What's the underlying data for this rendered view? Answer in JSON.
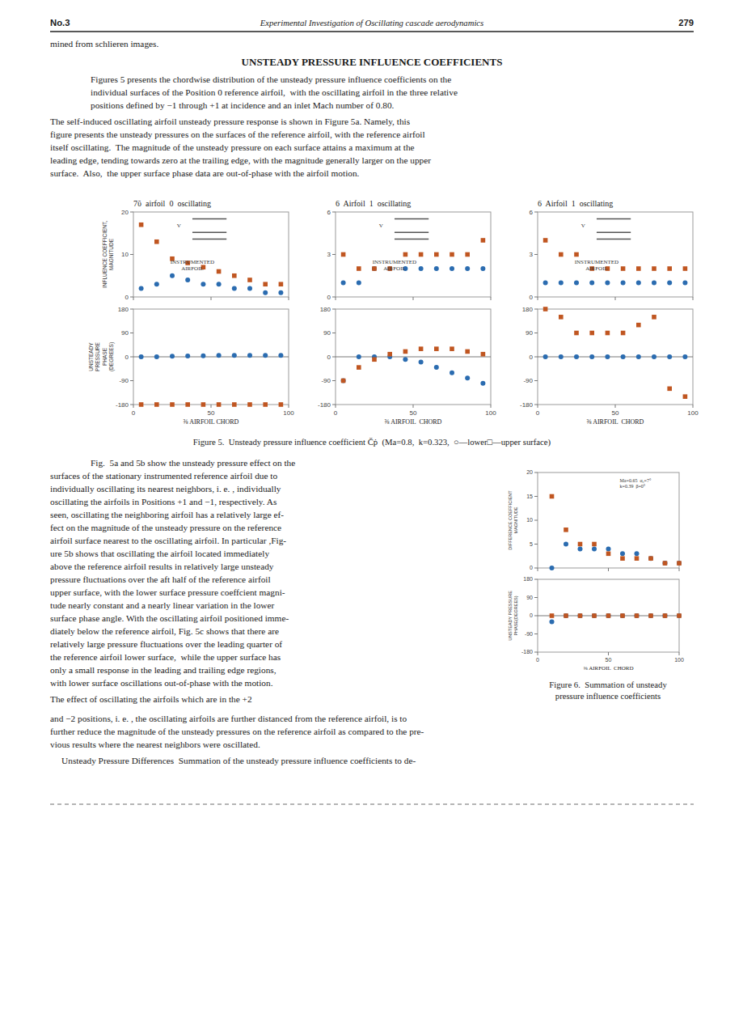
{
  "page": {
    "header_left": "No.3",
    "header_center": "Experimental Investigation of Oscillating cascade aerodynamics",
    "header_right": "279",
    "intro": "mined from schlieren images.",
    "section_title": "UNSTEADY PRESSURE INFLUENCE COEFFICIENTS",
    "para1": [
      "Figures 5 presents the chordwise distribution of the unsteady pressure influence coefficients on the",
      "individual surfaces of the Position 0 reference airfoil,  with the oscillating airfoil in the three relative",
      "positions defined by −1 through +1 at incidence and an inlet Mach number of 0.80."
    ],
    "para2": [
      "The self-induced oscillating airfoil unsteady pressure response is shown in Figure 5a. Namely, this",
      "figure presents the unsteady pressures on the surfaces of the reference airfoil, with the reference airfoil",
      "itself oscillating.  The magnitude of the unsteady pressure on each surface attains a maximum at the",
      "leading edge, tending towards zero at the trailing edge, with the magnitude generally larger on the upper",
      "surface.  Also,  the upper surface phase data are out-of-phase with the airfoil motion."
    ],
    "figure5_caption": "Figure 5.  Unsteady pressure influence coefficient Čṗ  (Ma=0.8,  k=0.323,  ○—lower□—upper surface)",
    "para3": [
      "Fig.  5a and 5b show the unsteady pressure effect on the",
      "surfaces of the stationary instrumented reference airfoil due to",
      "individually oscillating its nearest neighbors, i. e. , individually",
      "oscillating the airfoils in Positions +1 and −1, respectively. As",
      "seen, oscillating the neighboring airfoil has a relatively large ef-",
      "fect on the magnitude of the unsteady pressure on the reference",
      "airfoil surface nearest to the oscillating airfoil. In particular ,Fig-",
      "ure 5b shows that oscillating the airfoil located immediately",
      "above the reference airfoil results in relatively large unsteady",
      "pressure fluctuations over the aft half of the reference airfoil",
      "upper surface, with the lower surface pressure coeffcient magni-",
      "tude nearly constant and a nearly linear variation in the lower",
      "surface phase angle. With the oscillating airfoil positioned imme-",
      "diately below the reference airfoil, Fig. 5c shows that there are",
      "relatively large pressure fluctuations over the leading quarter of",
      "the reference airfoil lower surface,  while the upper surface has",
      "only a small response in the leading and trailing edge regions,",
      "with lower surface oscillations out-of-phase with the motion."
    ],
    "para4": "The effect of oscillating the airfoils which are in the +2",
    "figure6_caption": "Figure 6.  Summation of unsteady\npressure influence coefficients",
    "para5": [
      "and −2 positions, i. e. , the oscillating airfoils are further distanced from the reference airfoil, is to",
      "further reduce the magnitude of the unsteady pressures on the reference airfoil as compared to the pre-",
      "vious results where the nearest neighbors were oscillated."
    ],
    "para6": "     Unsteady Pressure Differences  Summation of the unsteady pressure influence coefficients to de-"
  },
  "chart_data": [
    {
      "type": "scatter",
      "title": "7ΰ  airfoil  0  oscillating",
      "ylabel": "INFLUENCE COEFFICIENT,\nMAGNITUDE",
      "xlim": [
        0,
        100
      ],
      "ylim": [
        0,
        20
      ],
      "xticks": [
        0,
        50,
        100
      ],
      "yticks": [
        0,
        10,
        20
      ],
      "tick_labels": "y",
      "grid": false,
      "annotations": [
        "INSTRUMENTED\nAIRFOIL",
        "V"
      ],
      "series": [
        {
          "marker": "circle",
          "color": "#2b6cb0",
          "x": [
            5,
            15,
            25,
            35,
            45,
            55,
            65,
            75,
            85,
            95
          ],
          "values": [
            2,
            3,
            5,
            4,
            3,
            3,
            2,
            2,
            1,
            1
          ]
        },
        {
          "marker": "square",
          "color": "#c05621",
          "x": [
            5,
            15,
            25,
            35,
            45,
            55,
            65,
            75,
            85,
            95
          ],
          "values": [
            17,
            13,
            9,
            8,
            7,
            6,
            5,
            4,
            3,
            3
          ]
        }
      ]
    },
    {
      "type": "scatter",
      "ylabel": "UNSTEADY\nPRESSURE\nPHASE\n(DEGREES)",
      "xlabel": "⅜ AIRFOIL CHORD",
      "xlim": [
        0,
        100
      ],
      "ylim": [
        -180,
        180
      ],
      "xticks": [
        0,
        50,
        100
      ],
      "yticks": [
        180,
        90,
        0,
        -90,
        -180
      ],
      "grid": false,
      "reference_lines": [
        0
      ],
      "series": [
        {
          "marker": "circle",
          "color": "#2b6cb0",
          "x": [
            5,
            15,
            25,
            35,
            45,
            55,
            65,
            75,
            85,
            95
          ],
          "values": [
            0,
            0,
            2,
            3,
            4,
            5,
            5,
            5,
            5,
            5
          ]
        },
        {
          "marker": "square",
          "color": "#c05621",
          "x": [
            5,
            15,
            25,
            35,
            45,
            55,
            65,
            75,
            85,
            95
          ],
          "values": [
            -180,
            -180,
            -180,
            -180,
            -180,
            -180,
            -180,
            -180,
            -180,
            -180
          ]
        }
      ]
    },
    {
      "type": "scatter",
      "title": "6  Airfoil  1  oscillating",
      "xlim": [
        0,
        100
      ],
      "ylim": [
        0,
        6
      ],
      "xticks": [
        0,
        50,
        100
      ],
      "yticks": [
        0,
        3,
        6
      ],
      "tick_labels": "y",
      "grid": false,
      "annotations": [
        "INSTRUMENTED\nAIRFOIL",
        "V"
      ],
      "series": [
        {
          "marker": "circle",
          "color": "#2b6cb0",
          "x": [
            5,
            15,
            25,
            35,
            45,
            55,
            65,
            75,
            85,
            95
          ],
          "values": [
            1,
            1,
            2,
            2,
            2,
            2,
            2,
            2,
            2,
            2
          ]
        },
        {
          "marker": "square",
          "color": "#c05621",
          "x": [
            5,
            15,
            25,
            35,
            45,
            55,
            65,
            75,
            85,
            95
          ],
          "values": [
            3,
            2,
            2,
            2,
            3,
            3,
            3,
            3,
            3,
            4
          ]
        }
      ]
    },
    {
      "type": "scatter",
      "xlabel": "⅜ AIRFOIL  CHORD",
      "xlim": [
        0,
        100
      ],
      "ylim": [
        -180,
        180
      ],
      "xticks": [
        0,
        50,
        100
      ],
      "yticks": [
        180,
        90,
        0,
        -90,
        -180
      ],
      "grid": false,
      "reference_lines": [
        0
      ],
      "series": [
        {
          "marker": "circle",
          "color": "#2b6cb0",
          "x": [
            5,
            15,
            25,
            35,
            45,
            55,
            65,
            75,
            85,
            95
          ],
          "values": [
            -90,
            0,
            0,
            0,
            -10,
            -20,
            -40,
            -60,
            -80,
            -100
          ]
        },
        {
          "marker": "square",
          "color": "#c05621",
          "x": [
            5,
            15,
            25,
            35,
            45,
            55,
            65,
            75,
            85,
            95
          ],
          "values": [
            -90,
            -40,
            -10,
            10,
            20,
            30,
            30,
            30,
            20,
            10
          ]
        }
      ]
    },
    {
      "type": "scatter",
      "title": "6  Airfoil  1  oscillating",
      "xlim": [
        0,
        100
      ],
      "ylim": [
        0,
        6
      ],
      "xticks": [
        0,
        50,
        100
      ],
      "yticks": [
        0,
        3,
        6
      ],
      "tick_labels": "y",
      "grid": false,
      "annotations": [
        "INSTRUMENTED\nAIRFOIL",
        "V"
      ],
      "series": [
        {
          "marker": "circle",
          "color": "#2b6cb0",
          "x": [
            5,
            15,
            25,
            35,
            45,
            55,
            65,
            75,
            85,
            95
          ],
          "values": [
            1,
            1,
            1,
            1,
            1,
            1,
            1,
            1,
            1,
            1
          ]
        },
        {
          "marker": "square",
          "color": "#c05621",
          "x": [
            5,
            15,
            25,
            35,
            45,
            55,
            65,
            75,
            85,
            95
          ],
          "values": [
            4,
            3,
            3,
            2,
            2,
            2,
            2,
            2,
            2,
            2
          ]
        }
      ]
    },
    {
      "type": "scatter",
      "xlabel": "⅜ AIRFOIL  CHORD",
      "xlim": [
        0,
        100
      ],
      "ylim": [
        -180,
        180
      ],
      "xticks": [
        0,
        50,
        100
      ],
      "yticks": [
        180,
        90,
        0,
        -90,
        -180
      ],
      "grid": false,
      "reference_lines": [
        0
      ],
      "series": [
        {
          "marker": "circle",
          "color": "#2b6cb0",
          "x": [
            5,
            15,
            25,
            35,
            45,
            55,
            65,
            75,
            85,
            95
          ],
          "values": [
            0,
            0,
            0,
            0,
            0,
            0,
            0,
            0,
            0,
            0
          ]
        },
        {
          "marker": "square",
          "color": "#c05621",
          "x": [
            5,
            15,
            25,
            35,
            45,
            55,
            65,
            75,
            85,
            95
          ],
          "values": [
            180,
            150,
            90,
            90,
            90,
            90,
            120,
            150,
            -120,
            -150
          ]
        }
      ]
    },
    {
      "type": "scatter",
      "ylabel": "DIFFERENCE COEFFICIENT\nMAGNITUDE",
      "xlim": [
        0,
        100
      ],
      "ylim": [
        0,
        20
      ],
      "xticks": [
        0,
        50,
        100
      ],
      "yticks": [
        0,
        5,
        10,
        15,
        20
      ],
      "tick_labels": "y",
      "grid": false,
      "annotations": [
        "Ma=0.65  α₀=7°\nk=0.39  β=0°"
      ],
      "series": [
        {
          "marker": "circle",
          "color": "#2b6cb0",
          "x": [
            10,
            20,
            30,
            40,
            50,
            60,
            70,
            80,
            90,
            100
          ],
          "values": [
            0,
            5,
            4,
            4,
            4,
            3,
            3,
            2,
            1,
            1
          ]
        },
        {
          "marker": "square",
          "color": "#c05621",
          "x": [
            10,
            20,
            30,
            40,
            50,
            60,
            70,
            80,
            90,
            100
          ],
          "values": [
            15,
            8,
            5,
            5,
            3,
            2,
            2,
            2,
            1,
            1
          ]
        }
      ]
    },
    {
      "type": "scatter",
      "ylabel": "UNSTEADY PRESSURE\nPHASE(DEGREES)",
      "xlabel": "⅜ AIRFOIL  CHORD",
      "xlim": [
        0,
        100
      ],
      "ylim": [
        -180,
        180
      ],
      "xticks": [
        0,
        50,
        100
      ],
      "yticks": [
        180,
        90,
        0,
        -90,
        -180
      ],
      "grid": false,
      "reference_lines": [
        0
      ],
      "series": [
        {
          "marker": "circle",
          "color": "#2b6cb0",
          "x": [
            10,
            20,
            30,
            40,
            50,
            60,
            70,
            80,
            90,
            100
          ],
          "values": [
            -30,
            0,
            0,
            0,
            0,
            0,
            0,
            0,
            0,
            0
          ]
        },
        {
          "marker": "square",
          "color": "#c05621",
          "x": [
            10,
            20,
            30,
            40,
            50,
            60,
            70,
            80,
            90,
            100
          ],
          "values": [
            0,
            0,
            0,
            0,
            0,
            0,
            0,
            0,
            0,
            0
          ]
        }
      ]
    }
  ]
}
